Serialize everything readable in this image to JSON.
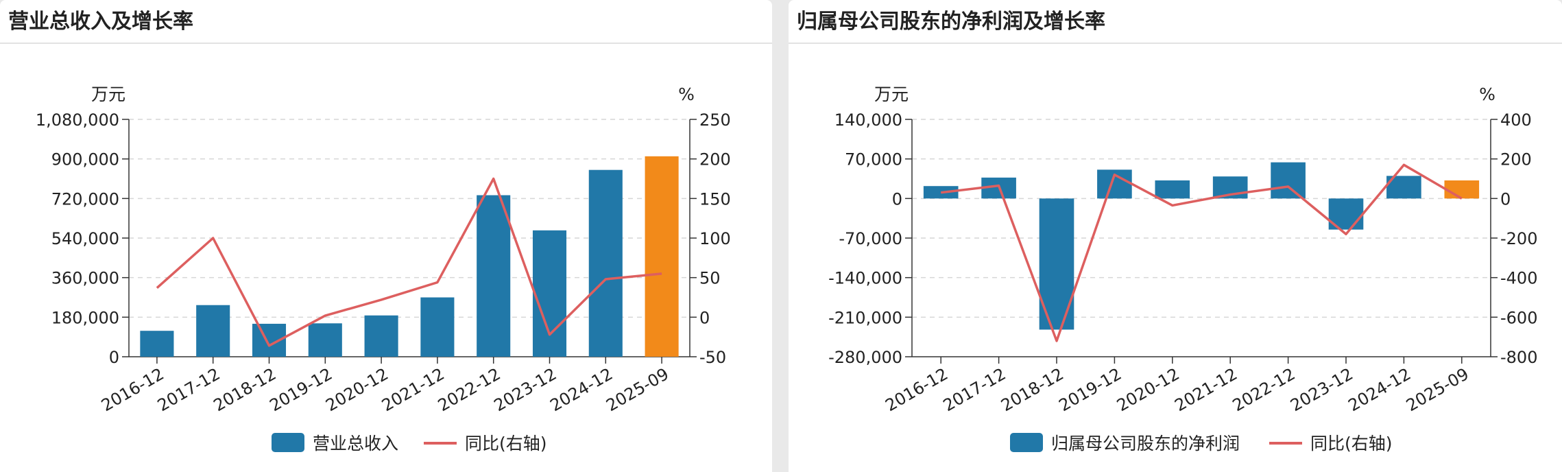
{
  "panels": [
    {
      "title": "营业总收入及增长率"
    },
    {
      "title": "归属母公司股东的净利润及增长率"
    }
  ],
  "colors": {
    "bar": "#2178a8",
    "bar_highlight": "#f28a1a",
    "line": "#dd5f5f",
    "grid": "#d6d6d6",
    "axis": "#333333"
  },
  "chart_data": [
    {
      "type": "bar+line",
      "title": "营业总收入及增长率",
      "categories": [
        "2016-12",
        "2017-12",
        "2018-12",
        "2019-12",
        "2020-12",
        "2021-12",
        "2022-12",
        "2023-12",
        "2024-12",
        "2025-09"
      ],
      "series": [
        {
          "name": "营业总收入",
          "type": "bar",
          "axis": "left",
          "values": [
            118000,
            235000,
            150000,
            152000,
            188000,
            270000,
            735000,
            575000,
            850000,
            912000
          ]
        },
        {
          "name": "同比(右轴)",
          "type": "line",
          "axis": "right",
          "values": [
            37,
            100,
            -36,
            2,
            22,
            44,
            175,
            -22,
            48,
            55
          ]
        }
      ],
      "highlight_last_bar": true,
      "y_left": {
        "unit": "万元",
        "range": [
          0,
          1080000
        ],
        "ticks": [
          0,
          180000,
          360000,
          540000,
          720000,
          900000,
          1080000
        ],
        "tick_labels": [
          "0",
          "180,000",
          "360,000",
          "540,000",
          "720,000",
          "900,000",
          "1,080,000"
        ]
      },
      "y_right": {
        "unit": "%",
        "range": [
          -50,
          250
        ],
        "ticks": [
          -50,
          0,
          50,
          100,
          150,
          200,
          250
        ],
        "tick_labels": [
          "-50",
          "0",
          "50",
          "100",
          "150",
          "200",
          "250"
        ]
      },
      "grid": true,
      "legend": {
        "position": "bottom-center",
        "items": [
          "营业总收入",
          "同比(右轴)"
        ]
      }
    },
    {
      "type": "bar+line",
      "title": "归属母公司股东的净利润及增长率",
      "categories": [
        "2016-12",
        "2017-12",
        "2018-12",
        "2019-12",
        "2020-12",
        "2021-12",
        "2022-12",
        "2023-12",
        "2024-12",
        "2025-09"
      ],
      "series": [
        {
          "name": "归属母公司股东的净利润",
          "type": "bar",
          "axis": "left",
          "values": [
            22000,
            37000,
            -232000,
            51000,
            32000,
            39000,
            64000,
            -55000,
            40000,
            32000
          ]
        },
        {
          "name": "同比(右轴)",
          "type": "line",
          "axis": "right",
          "values": [
            30,
            65,
            -720,
            120,
            -35,
            20,
            60,
            -180,
            170,
            0
          ]
        }
      ],
      "highlight_last_bar": true,
      "y_left": {
        "unit": "万元",
        "range": [
          -280000,
          140000
        ],
        "ticks": [
          -280000,
          -210000,
          -140000,
          -70000,
          0,
          70000,
          140000
        ],
        "tick_labels": [
          "-280,000",
          "-210,000",
          "-140,000",
          "-70,000",
          "0",
          "70,000",
          "140,000"
        ]
      },
      "y_right": {
        "unit": "%",
        "range": [
          -800,
          400
        ],
        "ticks": [
          -800,
          -600,
          -400,
          -200,
          0,
          200,
          400
        ],
        "tick_labels": [
          "-800",
          "-600",
          "-400",
          "-200",
          "0",
          "200",
          "400"
        ]
      },
      "grid": true,
      "legend": {
        "position": "bottom-center",
        "items": [
          "归属母公司股东的净利润",
          "同比(右轴)"
        ]
      }
    }
  ]
}
